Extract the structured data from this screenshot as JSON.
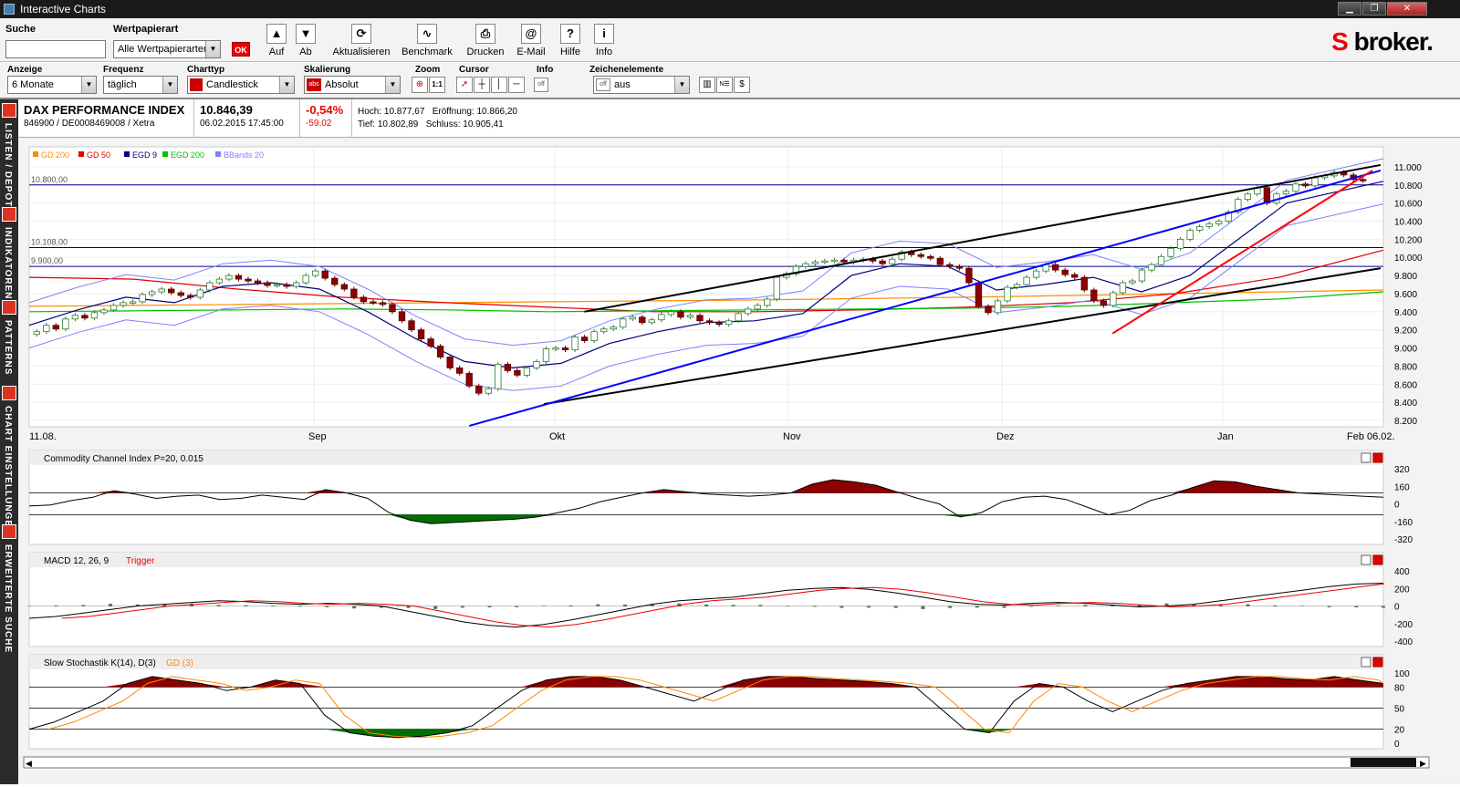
{
  "window": {
    "title": "Interactive Charts",
    "min": "▁",
    "restore": "❐",
    "close": "✕"
  },
  "search": {
    "label": "Suche",
    "value": ""
  },
  "security_type": {
    "label": "Wertpapierart",
    "value": "Alle Wertpapierarten",
    "ok": "OK"
  },
  "toolbar": {
    "buttons": [
      {
        "label": "Auf",
        "icon": "arrow-up-icon",
        "glyph": "▲"
      },
      {
        "label": "Ab",
        "icon": "arrow-down-icon",
        "glyph": "▼"
      },
      {
        "label": "Aktualisieren",
        "icon": "refresh-icon",
        "glyph": "⟳"
      },
      {
        "label": "Benchmark",
        "icon": "benchmark-icon",
        "glyph": "∿"
      },
      {
        "label": "Drucken",
        "icon": "print-icon",
        "glyph": "⎙"
      },
      {
        "label": "E-Mail",
        "icon": "email-icon",
        "glyph": "@"
      },
      {
        "label": "Hilfe",
        "icon": "help-icon",
        "glyph": "?"
      },
      {
        "label": "Info",
        "icon": "info-icon",
        "glyph": "i"
      }
    ]
  },
  "brand": {
    "s": "S",
    "name": "broker."
  },
  "settings": {
    "anzeige": {
      "label": "Anzeige",
      "value": "6 Monate"
    },
    "frequenz": {
      "label": "Frequenz",
      "value": "täglich"
    },
    "charttyp": {
      "label": "Charttyp",
      "value": "Candlestick"
    },
    "skalierung": {
      "label": "Skalierung",
      "value": "Absolut",
      "badge": "abs"
    },
    "zoom": {
      "label": "Zoom",
      "one_to_one": "1:1"
    },
    "cursor": {
      "label": "Cursor"
    },
    "info": {
      "label": "Info",
      "value": "off"
    },
    "zeichen": {
      "label": "Zeichenelemente",
      "value": "aus",
      "badge": "off"
    }
  },
  "sidebar": [
    {
      "label": "LISTEN / DEPOT",
      "icon": "list-icon"
    },
    {
      "label": "INDIKATOREN",
      "icon": "indicator-icon"
    },
    {
      "label": "PATTERNS",
      "icon": "pattern-icon"
    },
    {
      "label": "CHART EINSTELLUNGEN",
      "icon": "chart-settings-icon"
    },
    {
      "label": "ERWEITERTE SUCHE",
      "icon": "advanced-search-icon"
    }
  ],
  "instrument": {
    "name": "DAX PERFORMANCE INDEX",
    "ids": "846900 / DE0008469008 / Xetra",
    "price": "10.846,39",
    "datetime": "06.02.2015 17:45:00",
    "change_pct": "-0,54%",
    "change_abs": "-59,02",
    "hoch": "Hoch: 10.877,67",
    "eroeffnung": "Eröffnung: 10.866,20",
    "tief": "Tief: 10.802,89",
    "schluss": "Schluss: 10.905,41"
  },
  "colors": {
    "up": "#ffffff",
    "down": "#8b0000",
    "candle_edge_up": "#2e7d32",
    "candle_edge_down": "#5a0000",
    "gd200": "#ff8c00",
    "gd50": "#e00000",
    "egd9": "#000080",
    "egd200": "#00c000",
    "bbands": "#8080ff",
    "hline": "#00008b",
    "trend_black": "#000000",
    "trend_blue": "#0000ff",
    "trend_red": "#ff0000",
    "osc_pos": "#8b0000",
    "osc_neg": "#007000"
  },
  "main_chart": {
    "legend": [
      "GD 200",
      "GD 50",
      "EGD 9",
      "EGD 200",
      "BBands 20"
    ],
    "hline_labels": [
      "10.800,00",
      "10.108,00",
      "9.900,00"
    ],
    "hline_values": [
      10800,
      10108,
      9900
    ],
    "y_ticks": [
      "11.000",
      "10.800",
      "10.600",
      "10.400",
      "10.200",
      "10.000",
      "9.800",
      "9.600",
      "9.400",
      "9.200",
      "9.000",
      "8.800",
      "8.600",
      "8.400",
      "8.200"
    ],
    "x_labels": [
      "11.08.",
      "Sep",
      "Okt",
      "Nov",
      "Dez",
      "Jan",
      "Feb 06.02."
    ]
  },
  "chart_data": {
    "type": "candlestick",
    "title": "DAX PERFORMANCE INDEX",
    "ylim": [
      8200,
      11100
    ],
    "candles_close": [
      9180,
      9250,
      9210,
      9320,
      9360,
      9330,
      9390,
      9420,
      9470,
      9500,
      9510,
      9590,
      9620,
      9650,
      9610,
      9580,
      9560,
      9640,
      9720,
      9760,
      9800,
      9760,
      9740,
      9720,
      9690,
      9700,
      9680,
      9720,
      9800,
      9850,
      9770,
      9700,
      9650,
      9560,
      9510,
      9500,
      9480,
      9400,
      9300,
      9200,
      9100,
      9020,
      8900,
      8780,
      8720,
      8580,
      8500,
      8550,
      8820,
      8750,
      8700,
      8780,
      8850,
      8990,
      9000,
      8980,
      9120,
      9080,
      9180,
      9210,
      9230,
      9320,
      9340,
      9280,
      9310,
      9370,
      9400,
      9340,
      9360,
      9300,
      9280,
      9260,
      9300,
      9380,
      9430,
      9470,
      9540,
      9780,
      9820,
      9900,
      9930,
      9950,
      9960,
      9970,
      9950,
      9970,
      9980,
      9960,
      9930,
      9980,
      10060,
      10030,
      10010,
      9990,
      9920,
      9900,
      9880,
      9720,
      9460,
      9390,
      9520,
      9670,
      9700,
      9780,
      9850,
      9920,
      9860,
      9810,
      9780,
      9640,
      9520,
      9470,
      9610,
      9720,
      9740,
      9860,
      9920,
      10010,
      10100,
      10200,
      10300,
      10340,
      10370,
      10400,
      10500,
      10640,
      10700,
      10770,
      10600,
      10700,
      10730,
      10810,
      10790,
      10880,
      10900,
      10940,
      10910,
      10860,
      10846
    ],
    "egd9_points": [
      9250,
      9420,
      9560,
      9500,
      9680,
      9720,
      9650,
      9400,
      9100,
      8850,
      8780,
      8830,
      9050,
      9180,
      9280,
      9300,
      9380,
      9800,
      9930,
      9900,
      9640,
      9700,
      9780,
      9620,
      9800,
      10200,
      10600,
      10720,
      10840
    ],
    "series": [
      {
        "name": "GD 200",
        "values": [
          9460,
          9470,
          9480,
          9490,
          9500,
          9510,
          9520,
          9530,
          9545,
          9560,
          9580,
          9600,
          9620,
          9640
        ]
      },
      {
        "name": "GD 50",
        "values": [
          9780,
          9760,
          9650,
          9560,
          9500,
          9450,
          9400,
          9400,
          9420,
          9450,
          9500,
          9600,
          9780,
          10080
        ]
      },
      {
        "name": "EGD 200",
        "values": [
          9400,
          9410,
          9420,
          9430,
          9420,
          9400,
          9410,
          9420,
          9430,
          9440,
          9460,
          9500,
          9540,
          9620
        ]
      }
    ]
  },
  "panels": [
    {
      "title": "Commodity Channel Index P=20, 0.015",
      "y_ticks": [
        "320",
        "160",
        "0",
        "-160",
        "-320"
      ]
    },
    {
      "title": "MACD 12, 26, 9",
      "trigger": "Trigger",
      "y_ticks": [
        "400",
        "200",
        "0",
        "-200",
        "-400"
      ]
    },
    {
      "title": "Slow Stochastik K(14), D(3)",
      "gd": "GD (3)",
      "y_ticks": [
        "100",
        "80",
        "50",
        "20",
        "0"
      ]
    }
  ],
  "osc_data": {
    "cci": [
      -20,
      -10,
      30,
      60,
      120,
      90,
      50,
      70,
      80,
      40,
      50,
      80,
      60,
      40,
      130,
      100,
      50,
      -80,
      -150,
      -180,
      -170,
      -160,
      -150,
      -140,
      -120,
      -80,
      -40,
      20,
      60,
      100,
      130,
      110,
      90,
      80,
      70,
      80,
      100,
      180,
      220,
      200,
      170,
      110,
      50,
      0,
      -120,
      -80,
      20,
      60,
      70,
      40,
      -30,
      -100,
      -60,
      30,
      80,
      150,
      210,
      200,
      160,
      130,
      100,
      90,
      80,
      70,
      60
    ],
    "macd": [
      -140,
      -120,
      -80,
      -40,
      0,
      20,
      40,
      60,
      50,
      30,
      20,
      30,
      20,
      0,
      -60,
      -120,
      -180,
      -220,
      -240,
      -210,
      -160,
      -100,
      -40,
      20,
      60,
      80,
      100,
      140,
      180,
      200,
      210,
      190,
      150,
      100,
      50,
      20,
      10,
      30,
      40,
      30,
      10,
      -10,
      0,
      20,
      60,
      100,
      140,
      180,
      220,
      250,
      260
    ],
    "stoch": [
      20,
      30,
      45,
      60,
      85,
      95,
      90,
      85,
      75,
      80,
      90,
      85,
      40,
      15,
      10,
      8,
      10,
      15,
      25,
      50,
      75,
      90,
      95,
      95,
      90,
      80,
      70,
      60,
      75,
      90,
      95,
      95,
      92,
      90,
      88,
      85,
      80,
      50,
      20,
      15,
      60,
      85,
      80,
      60,
      45,
      60,
      75,
      85,
      90,
      95,
      95,
      92,
      90,
      95,
      90,
      85
    ]
  }
}
